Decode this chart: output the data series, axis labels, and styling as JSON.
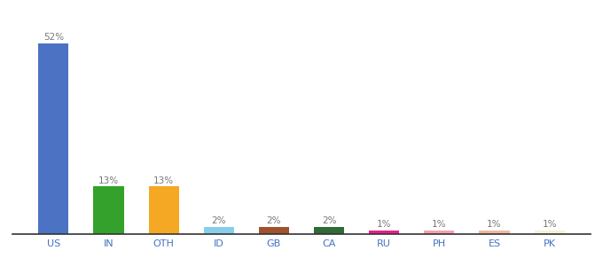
{
  "categories": [
    "US",
    "IN",
    "OTH",
    "ID",
    "GB",
    "CA",
    "RU",
    "PH",
    "ES",
    "PK"
  ],
  "values": [
    52,
    13,
    13,
    2,
    2,
    2,
    1,
    1,
    1,
    1
  ],
  "bar_colors": [
    "#4c72c4",
    "#33a12b",
    "#f5a823",
    "#87ceeb",
    "#a0522d",
    "#2e6b35",
    "#e91e8c",
    "#f4a0b0",
    "#f0b8a0",
    "#f5f0d8"
  ],
  "labels": [
    "52%",
    "13%",
    "13%",
    "2%",
    "2%",
    "2%",
    "1%",
    "1%",
    "1%",
    "1%"
  ],
  "ylim": [
    0,
    58
  ],
  "background_color": "#ffffff",
  "label_fontsize": 7.5,
  "tick_fontsize": 8,
  "label_color": "#777777",
  "tick_color": "#4472c4"
}
